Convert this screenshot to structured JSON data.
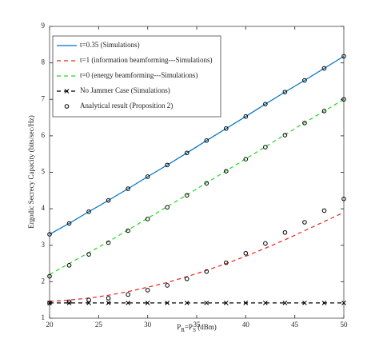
{
  "chart_data": {
    "type": "line",
    "xlabel": [
      "P",
      "R",
      "=P",
      "S",
      " (dBm)"
    ],
    "ylabel": "Ergodic Secrecy Capacity  (bits/sec/Hz)",
    "x": [
      20,
      22,
      24,
      26,
      28,
      30,
      32,
      34,
      36,
      38,
      40,
      42,
      44,
      46,
      48,
      50
    ],
    "xlim": [
      20,
      50
    ],
    "xticks": [
      20,
      25,
      30,
      35,
      40,
      45,
      50
    ],
    "ylim": [
      1,
      9
    ],
    "yticks": [
      1,
      2,
      3,
      4,
      5,
      6,
      7,
      8,
      9
    ],
    "legend": "upper left",
    "series": [
      {
        "name": "t=0.35 (Simulations)",
        "color": "#0072bd",
        "dash": "solid",
        "marker": "none",
        "values": [
          3.3,
          3.6,
          3.92,
          4.23,
          4.55,
          4.88,
          5.2,
          5.53,
          5.87,
          6.2,
          6.53,
          6.87,
          7.2,
          7.52,
          7.85,
          8.18
        ]
      },
      {
        "name": "t=1 (information beamforming---Simulations)",
        "color": "#e8251f",
        "dash": "dashed",
        "marker": "none",
        "values": [
          1.46,
          1.5,
          1.55,
          1.63,
          1.73,
          1.85,
          1.98,
          2.14,
          2.31,
          2.5,
          2.7,
          2.92,
          3.15,
          3.4,
          3.65,
          3.9
        ]
      },
      {
        "name": "t=0 (energy beamforming---Simulations)",
        "color": "#22d622",
        "dash": "dashed",
        "marker": "none",
        "values": [
          2.2,
          2.5,
          2.8,
          3.1,
          3.42,
          3.74,
          4.06,
          4.38,
          4.71,
          5.04,
          5.37,
          5.7,
          6.03,
          6.36,
          6.68,
          7.0
        ]
      },
      {
        "name": "No Jammer Case (Simulations)",
        "color": "#000000",
        "dash": "dashed",
        "marker": "x",
        "values": [
          1.42,
          1.42,
          1.42,
          1.42,
          1.42,
          1.42,
          1.42,
          1.42,
          1.42,
          1.42,
          1.42,
          1.42,
          1.42,
          1.42,
          1.42,
          1.42
        ]
      }
    ],
    "analytical": {
      "name": "Analytical result (Proposition 2)",
      "color": "#000000",
      "marker": "circle",
      "sets": [
        [
          3.3,
          3.6,
          3.92,
          4.23,
          4.55,
          4.88,
          5.2,
          5.53,
          5.87,
          6.2,
          6.53,
          6.87,
          7.2,
          7.52,
          7.85,
          8.18
        ],
        [
          1.42,
          1.45,
          1.5,
          1.55,
          1.65,
          1.77,
          1.9,
          2.08,
          2.28,
          2.52,
          2.78,
          3.05,
          3.35,
          3.63,
          3.95,
          4.27
        ],
        [
          2.15,
          2.45,
          2.75,
          3.07,
          3.4,
          3.72,
          4.04,
          4.37,
          4.7,
          5.03,
          5.36,
          5.69,
          6.02,
          6.35,
          6.68,
          7.0
        ]
      ]
    }
  }
}
